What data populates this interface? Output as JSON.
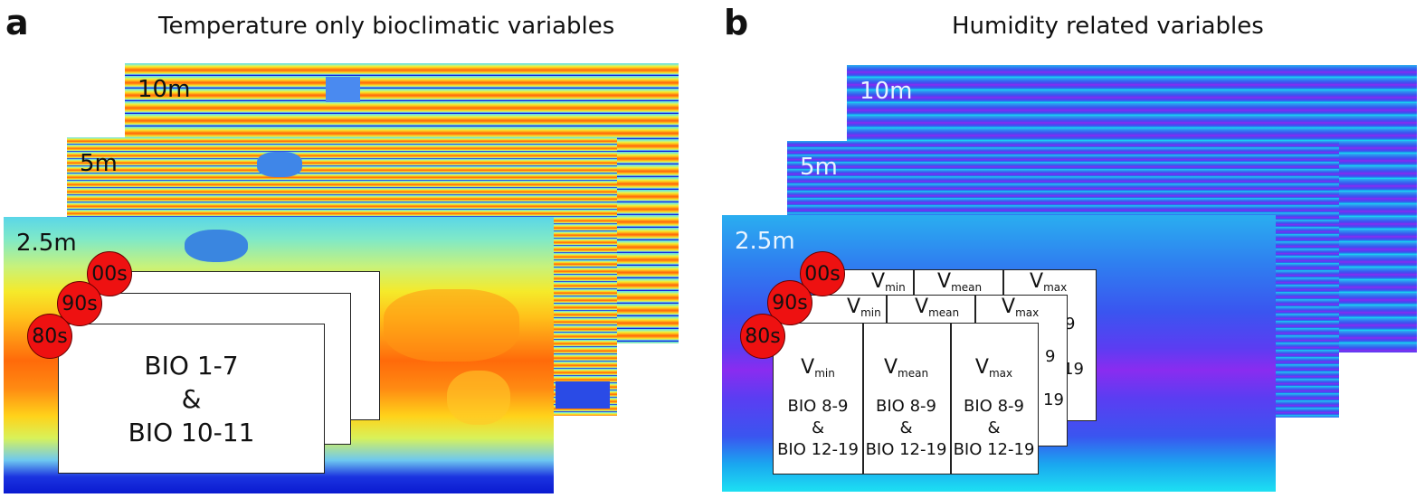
{
  "panel_a": {
    "letter": "a",
    "title": "Temperature only bioclimatic variables",
    "resolutions": [
      "10m",
      "5m",
      "2.5m"
    ],
    "decades": [
      "00s",
      "90s",
      "80s"
    ],
    "card_text": [
      "BIO 1-7",
      "&",
      "BIO 10-11"
    ]
  },
  "panel_b": {
    "letter": "b",
    "title": "Humidity related variables",
    "resolutions": [
      "10m",
      "5m",
      "2.5m"
    ],
    "decades": [
      "00s",
      "90s",
      "80s"
    ],
    "v_base": "V",
    "v_subs": [
      "min",
      "mean",
      "max"
    ],
    "peek_numbers": [
      "9",
      "9",
      "19",
      "19"
    ],
    "col_lines": [
      "BIO 8-9",
      "&",
      "BIO 12-19"
    ]
  },
  "colors": {
    "circle_red": "#ee1111",
    "temp_warm": "#ff6a0a",
    "hum_purple": "#8a2cf0"
  }
}
